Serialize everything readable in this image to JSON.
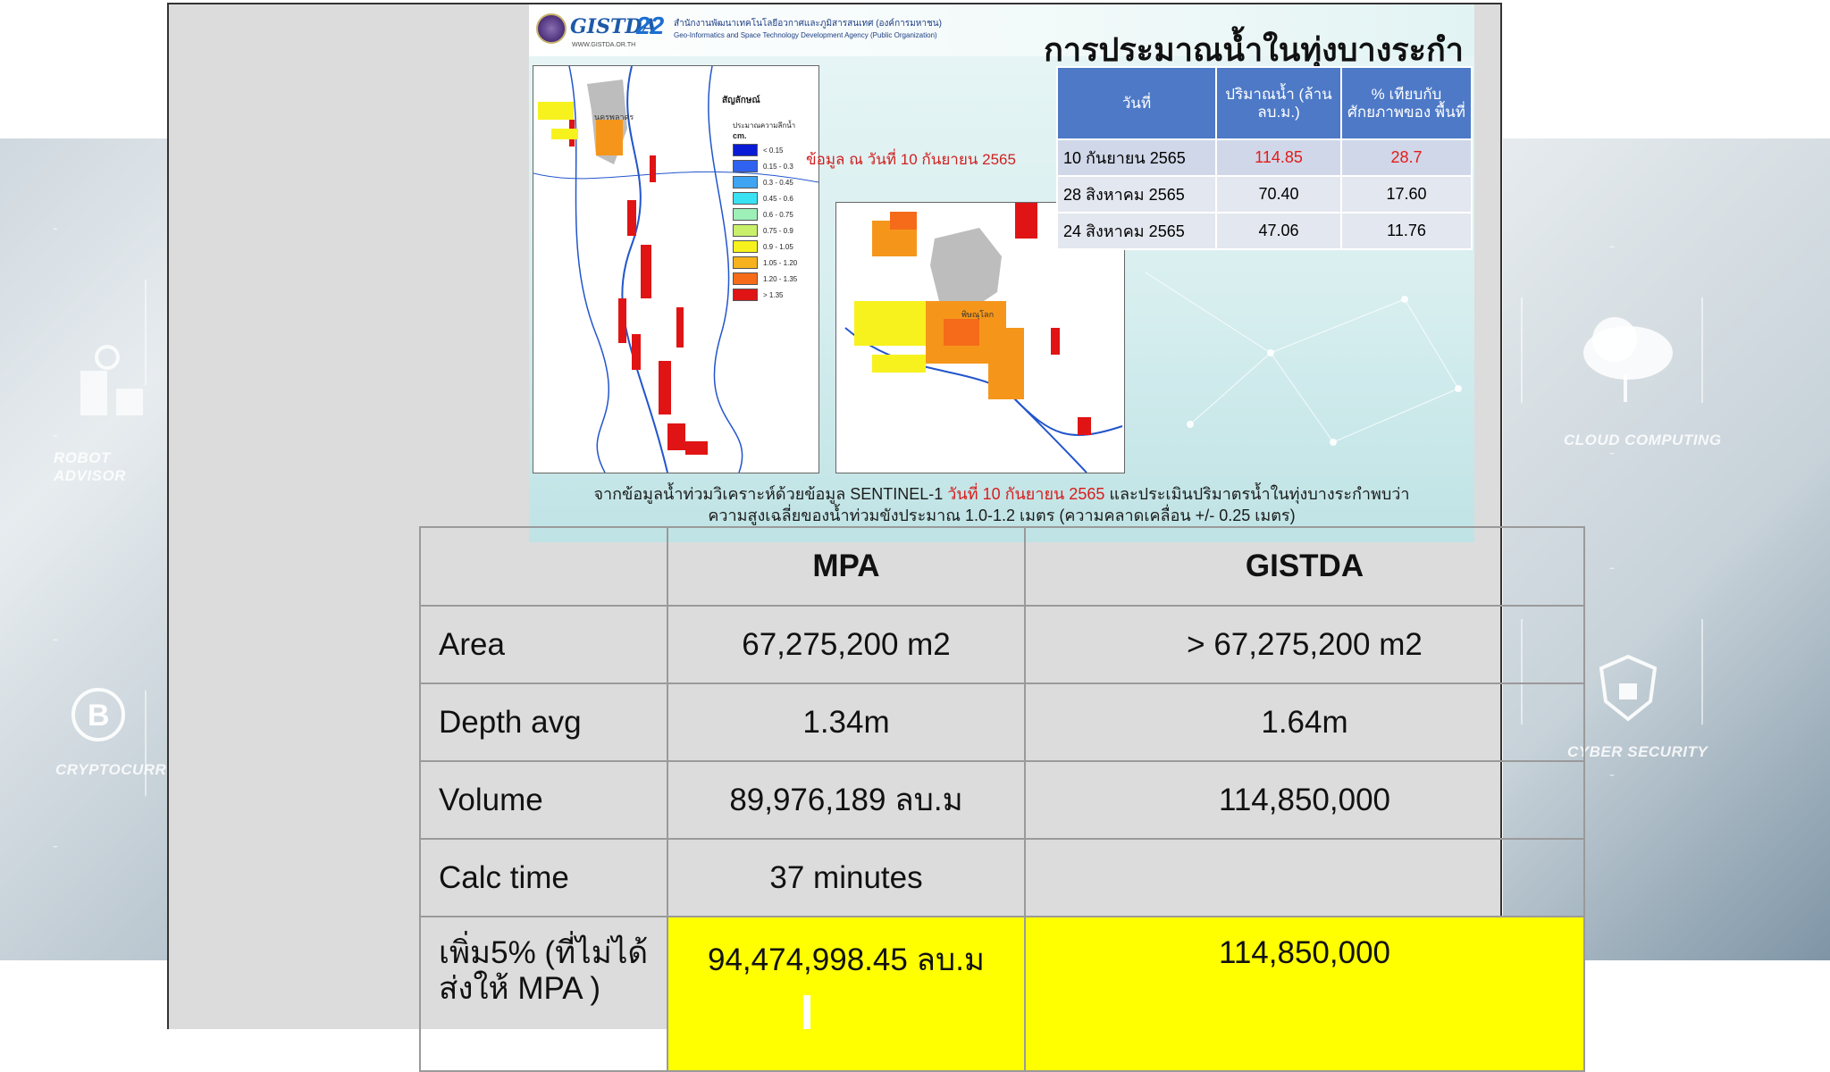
{
  "background": {
    "left_labels": [
      "ROBOT ADVISOR",
      "CRYPTOCURRENCY"
    ],
    "right_labels": [
      "CLOUD COMPUTING",
      "CYBER SECURITY"
    ]
  },
  "infographic": {
    "logo_text": "GISTDA",
    "logo_url": "WWW.GISTDA.OR.TH",
    "logo_number": "22",
    "agency_th": "สำนักงานพัฒนาเทคโนโลยีอวกาศและภูมิสารสนเทศ (องค์การมหาชน)",
    "agency_en": "Geo-Informatics and Space Technology Development Agency (Public Organization)",
    "title": "การประมาณน้ำในทุ่งบางระกำ",
    "data_note": "ข้อมูล ณ วันที่ 10 กันยายน 2565",
    "legend_title": "สัญลักษณ์",
    "legend_subtitle": "ประมาณความลึกน้ำ",
    "legend_unit": "cm.",
    "legend": [
      {
        "label": "< 0.15",
        "color": "#0a1bd6"
      },
      {
        "label": "0.15 - 0.3",
        "color": "#2f62f0"
      },
      {
        "label": "0.3 - 0.45",
        "color": "#3fa4f2"
      },
      {
        "label": "0.45 - 0.6",
        "color": "#39e2f2"
      },
      {
        "label": "0.6 - 0.75",
        "color": "#9df0b8"
      },
      {
        "label": "0.75 - 0.9",
        "color": "#c8f06a"
      },
      {
        "label": "0.9 - 1.05",
        "color": "#f7f21d"
      },
      {
        "label": "1.05 - 1.20",
        "color": "#f7b21d"
      },
      {
        "label": "1.20 - 1.35",
        "color": "#f56b1a"
      },
      {
        "label": "> 1.35",
        "color": "#e01414"
      }
    ],
    "map1_place": "นครพลาดร",
    "map2_place": "พิษณุโลก",
    "table": {
      "headers": [
        "วันที่",
        "ปริมาณน้ำ (ล้าน ลบ.ม.)",
        "% เทียบกับ ศักยภาพของ พื้นที่"
      ],
      "rows": [
        [
          "10 กันยายน 2565",
          "114.85",
          "28.7"
        ],
        [
          "28 สิงหาคม 2565",
          "70.40",
          "17.60"
        ],
        [
          "24 สิงหาคม 2565",
          "47.06",
          "11.76"
        ]
      ]
    },
    "caption_part1": "จากข้อมูลน้ำท่วมวิเคราะห์ด้วยข้อมูล SENTINEL-1 ",
    "caption_red": "วันที่ 10 กันยายน 2565",
    "caption_part2": " และประเมินปริมาตรน้ำในทุ่งบางระกำพบว่า",
    "caption_line2": "ความสูงเฉลี่ยของน้ำท่วมขังประมาณ 1.0-1.2 เมตร (ความคลาดเคลื่อน +/- 0.25 เมตร)"
  },
  "comparison": {
    "headers": [
      "",
      "MPA",
      "GISTDA"
    ],
    "rows": [
      {
        "label": "Area",
        "mpa": "67,275,200 m2",
        "gistda": "> 67,275,200 m2"
      },
      {
        "label": "Depth avg",
        "mpa": "1.34m",
        "gistda": "1.64m"
      },
      {
        "label": "Volume",
        "mpa": "89,976,189 ลบ.ม",
        "gistda": "114,850,000"
      },
      {
        "label": "Calc time",
        "mpa": "37 minutes",
        "gistda": ""
      },
      {
        "label": "เพิ่ม5% (ที่ไม่ได้ส่งให้ MPA )",
        "mpa": "94,474,998.45 ลบ.ม",
        "gistda": "114,850,000"
      }
    ],
    "highlight_color": "#ffff00"
  }
}
